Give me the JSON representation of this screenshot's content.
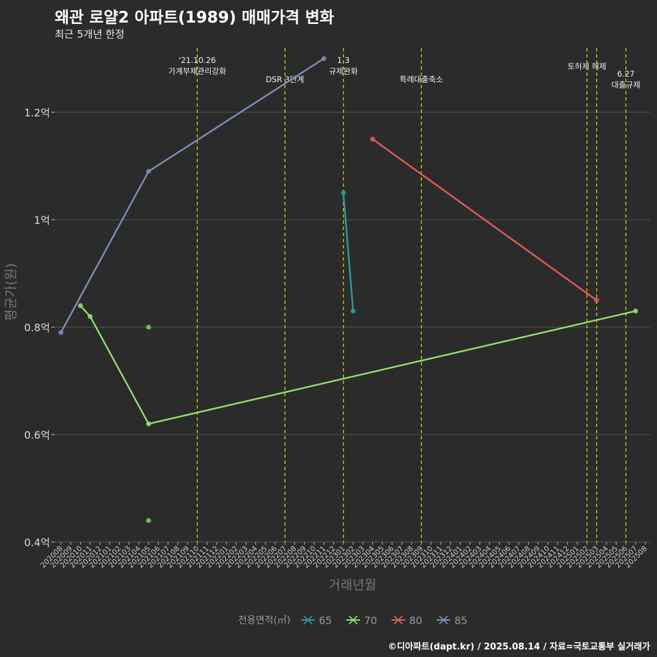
{
  "title": "왜관 로얄2 아파트(1989) 매매가격 변화",
  "subtitle": "최근 5개년 한정",
  "caption": "©디아파트(dapt.kr) / 2025.08.14 / 자료=국토교통부 실거래가",
  "colors": {
    "background": "#2b2b2b",
    "grid": "#555555",
    "event_line": "#e0e000",
    "s65": "#2a9d9a",
    "s70": "#8ee06e",
    "s80": "#e05c5c",
    "s85": "#7b8fb6"
  },
  "chart_data": {
    "type": "line",
    "title": "왜관 로얄2 아파트(1989) 매매가격 변화",
    "xlabel": "거래년월",
    "ylabel": "평균가(원)",
    "x": [
      "202008",
      "202009",
      "202010",
      "202011",
      "202012",
      "202101",
      "202102",
      "202103",
      "202104",
      "202105",
      "202106",
      "202107",
      "202108",
      "202109",
      "202110",
      "202111",
      "202112",
      "202201",
      "202202",
      "202203",
      "202204",
      "202205",
      "202206",
      "202207",
      "202208",
      "202209",
      "202210",
      "202211",
      "202212",
      "202301",
      "202302",
      "202303",
      "202304",
      "202305",
      "202306",
      "202307",
      "202308",
      "202309",
      "202310",
      "202311",
      "202312",
      "202401",
      "202402",
      "202403",
      "202404",
      "202405",
      "202406",
      "202407",
      "202408",
      "202409",
      "202410",
      "202411",
      "202412",
      "202501",
      "202502",
      "202503",
      "202504",
      "202505",
      "202506",
      "202507",
      "202508"
    ],
    "ylim": [
      0.4,
      1.33
    ],
    "yticks": [
      {
        "value": 0.4,
        "label": "0.4억"
      },
      {
        "value": 0.6,
        "label": "0.6억"
      },
      {
        "value": 0.8,
        "label": "0.8억"
      },
      {
        "value": 1.0,
        "label": "1억"
      },
      {
        "value": 1.2,
        "label": "1.2억"
      }
    ],
    "legend": {
      "title": "전용면적(㎡)",
      "position": "bottom"
    },
    "series": [
      {
        "name": "65",
        "color": "#2a9d9a",
        "points": [
          [
            "202301",
            1.05
          ],
          [
            "202302",
            0.83
          ]
        ]
      },
      {
        "name": "70",
        "color": "#8ee06e",
        "points": [
          [
            "202010",
            0.84
          ],
          [
            "202011",
            0.82
          ],
          [
            "202105",
            0.62
          ],
          [
            "202507",
            0.83
          ]
        ]
      },
      {
        "name": "80",
        "color": "#e05c5c",
        "points": [
          [
            "202304",
            1.15
          ],
          [
            "202503",
            0.85
          ]
        ]
      },
      {
        "name": "85",
        "color": "#7b8fb6",
        "points": [
          [
            "202008",
            0.79
          ],
          [
            "202105",
            1.09
          ],
          [
            "202211",
            1.3
          ]
        ]
      }
    ],
    "scatter": [
      {
        "series": "70",
        "x": "202105",
        "y": 0.8
      },
      {
        "series": "70",
        "x": "202105",
        "y": 0.44
      }
    ],
    "events": [
      {
        "x": "202110",
        "lines": [
          "'21.10.26",
          "가계부채관리강화"
        ]
      },
      {
        "x": "202207",
        "lines": [
          "DSR 3단계"
        ]
      },
      {
        "x": "202301",
        "lines": [
          "1.3",
          "규제완화"
        ]
      },
      {
        "x": "202309",
        "lines": [
          "특례대출축소"
        ]
      },
      {
        "x": "202502",
        "lines": [
          "토허제 해제"
        ]
      },
      {
        "x": "202503",
        "lines": []
      },
      {
        "x": "202506",
        "lines": [
          "6.27",
          "대출규제"
        ]
      }
    ]
  }
}
